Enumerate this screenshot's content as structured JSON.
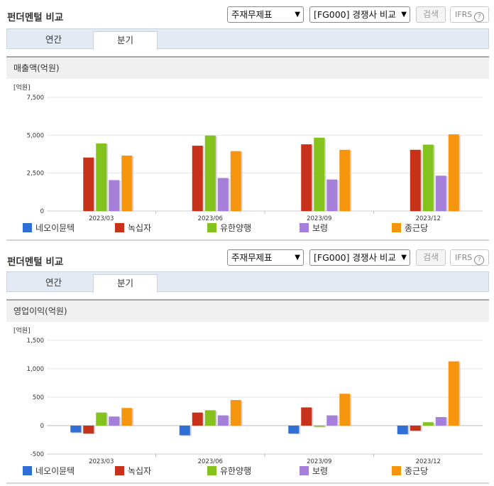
{
  "sections": [
    {
      "title": "펀더멘털 비교",
      "select1": "주재무제표",
      "select2": "[FG000] 경쟁사 비교",
      "search_label": "검색",
      "ifrs_label": "IFRS",
      "help_icon": "?",
      "tabs": [
        "연간",
        "분기"
      ],
      "active_tab": "분기",
      "metric_label": "매출액(억원)",
      "unit_label": "[억원]"
    },
    {
      "title": "펀더멘털 비교",
      "select1": "주재무제표",
      "select2": "[FG000] 경쟁사 비교",
      "search_label": "검색",
      "ifrs_label": "IFRS",
      "help_icon": "?",
      "tabs": [
        "연간",
        "분기"
      ],
      "active_tab": "분기",
      "metric_label": "영업이익(억원)",
      "unit_label": "[억원]"
    }
  ],
  "chart_data": [
    {
      "type": "bar",
      "title": "매출액(억원)",
      "ylabel": "[억원]",
      "categories": [
        "2023/03",
        "2023/06",
        "2023/09",
        "2023/12"
      ],
      "ylim": [
        0,
        7500
      ],
      "yticks": [
        0,
        2500,
        5000,
        7500
      ],
      "ytick_labels": [
        "0",
        "2,500",
        "5,000",
        "7,500"
      ],
      "grid": true,
      "legend_position": "bottom",
      "series": [
        {
          "name": "네오이뮨텍",
          "color": "#2f6fd6",
          "values": [
            null,
            null,
            null,
            null
          ]
        },
        {
          "name": "녹십자",
          "color": "#c9321a",
          "values": [
            3530,
            4310,
            4400,
            4040
          ]
        },
        {
          "name": "유한양행",
          "color": "#84c21e",
          "values": [
            4460,
            4980,
            4840,
            4380
          ]
        },
        {
          "name": "보령",
          "color": "#a57fd9",
          "values": [
            2040,
            2180,
            2080,
            2330
          ]
        },
        {
          "name": "종근당",
          "color": "#f6960f",
          "values": [
            3660,
            3950,
            4040,
            5060
          ]
        }
      ]
    },
    {
      "type": "bar",
      "title": "영업이익(억원)",
      "ylabel": "[억원]",
      "categories": [
        "2023/03",
        "2023/06",
        "2023/09",
        "2023/12"
      ],
      "ylim": [
        -500,
        1500
      ],
      "yticks": [
        -500,
        0,
        500,
        1000,
        1500
      ],
      "ytick_labels": [
        "-500",
        "0",
        "500",
        "1,000",
        "1,500"
      ],
      "grid": true,
      "legend_position": "bottom",
      "series": [
        {
          "name": "네오이뮨텍",
          "color": "#2f6fd6",
          "values": [
            -120,
            -170,
            -140,
            -150
          ]
        },
        {
          "name": "녹십자",
          "color": "#c9321a",
          "values": [
            -140,
            230,
            320,
            -90
          ]
        },
        {
          "name": "유한양행",
          "color": "#84c21e",
          "values": [
            230,
            270,
            -20,
            60
          ]
        },
        {
          "name": "보령",
          "color": "#a57fd9",
          "values": [
            160,
            180,
            180,
            150
          ]
        },
        {
          "name": "종근당",
          "color": "#f6960f",
          "values": [
            310,
            450,
            560,
            1130
          ]
        }
      ]
    }
  ]
}
